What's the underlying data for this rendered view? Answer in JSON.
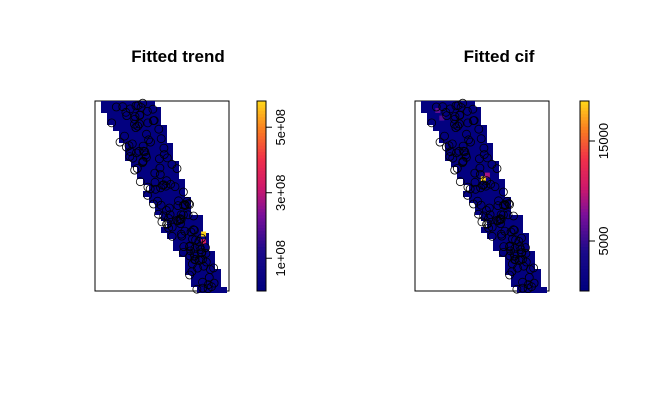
{
  "chart_data": [
    {
      "type": "heatmap",
      "title": "Fitted trend",
      "xlabel": "",
      "ylabel": "",
      "legend": "right",
      "colorbar": {
        "range": [
          0,
          580000000
        ],
        "ticks": [
          {
            "value": 100000000,
            "label": "1e+08"
          },
          {
            "value": 300000000,
            "label": "3e+08"
          },
          {
            "value": 500000000,
            "label": "5e+08"
          }
        ]
      },
      "hotspots": [
        {
          "u": 0.81,
          "v": 0.3,
          "value": 580000000
        },
        {
          "u": 0.81,
          "v": 0.26,
          "value": 330000000
        }
      ],
      "points_shown": true
    },
    {
      "type": "heatmap",
      "title": "Fitted cif",
      "xlabel": "",
      "ylabel": "",
      "legend": "right",
      "colorbar": {
        "range": [
          0,
          19000
        ],
        "ticks": [
          {
            "value": 5000,
            "label": "5000"
          },
          {
            "value": 15000,
            "label": "15000"
          }
        ]
      },
      "hotspots": [
        {
          "u": 0.51,
          "v": 0.59,
          "value": 19000
        },
        {
          "u": 0.54,
          "v": 0.61,
          "value": 9000
        },
        {
          "u": 0.17,
          "v": 0.95,
          "value": 6500
        },
        {
          "u": 0.2,
          "v": 0.91,
          "value": 6000
        }
      ],
      "points_shown": true
    }
  ]
}
